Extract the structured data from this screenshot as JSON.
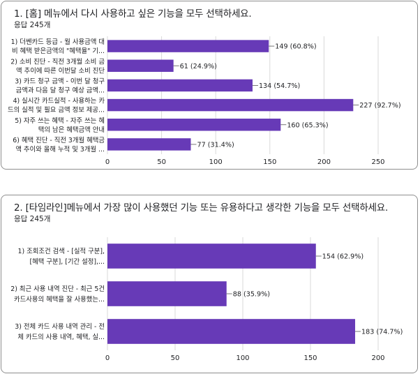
{
  "chart_data": [
    {
      "type": "bar",
      "orientation": "horizontal",
      "title": "1. [홈] 메뉴에서 다시 사용하고 싶은 기능을 모두 선택하세요.",
      "response_count": "응답 245개",
      "xlim": [
        0,
        250
      ],
      "ticks": [
        0,
        50,
        100,
        150,
        200,
        250
      ],
      "grid": true,
      "color": "#673ab7",
      "categories": [
        [
          "1) 더쎈카드 등급 - 월 사용금액 대",
          "비 혜택 받은금액의 \"혜택율\" 기..."
        ],
        [
          "2) 소비 진단 - 직전 3개월 소비 금",
          "액 추이에 따른 이번달 소비 진단"
        ],
        [
          "3) 카드 청구 금액 - 이번 달 청구",
          "금액과 다음 달 청구 예상 금액..."
        ],
        [
          "4) 실시간 카드실적 - 사용하는 카",
          "드의 실적 및 필요 금액 정보 제공..."
        ],
        [
          "5) 자주 쓰는 혜택 - 자주 쓰는 혜",
          "택의 남은 혜택금액 안내"
        ],
        [
          "6) 혜택 진단 - 직전 3개월 혜택금",
          "액 추이와 올해 누적 및 3개월 ..."
        ]
      ],
      "values": [
        149,
        61,
        134,
        227,
        160,
        77
      ],
      "value_labels": [
        "149 (60.8%)",
        "61 (24.9%)",
        "134 (54.7%)",
        "227 (92.7%)",
        "160 (65.3%)",
        "77 (31.4%)"
      ]
    },
    {
      "type": "bar",
      "orientation": "horizontal",
      "title": "2. [타임라인]메뉴에서 가장 많이 사용했던 기능 또는 유용하다고 생각한 기능을 모두 선택하세요.",
      "response_count": "응답 245개",
      "xlim": [
        0,
        200
      ],
      "ticks": [
        0,
        50,
        100,
        150,
        200
      ],
      "grid": true,
      "color": "#673ab7",
      "categories": [
        [
          "1) 조회조건 검색 - [실적 구분],",
          "[혜택 구분], [기간 설정],..."
        ],
        [
          "2) 최근 사용 내역 진단 - 최근 5건",
          "카드사용의 혜택을 잘 사용했는..."
        ],
        [
          "3) 전체 카드 사용 내역 관리 - 전",
          "체 카드의 사용 내역, 혜택, 실..."
        ]
      ],
      "values": [
        154,
        88,
        183
      ],
      "value_labels": [
        "154 (62.9%)",
        "88 (35.9%)",
        "183 (74.7%)"
      ]
    }
  ]
}
